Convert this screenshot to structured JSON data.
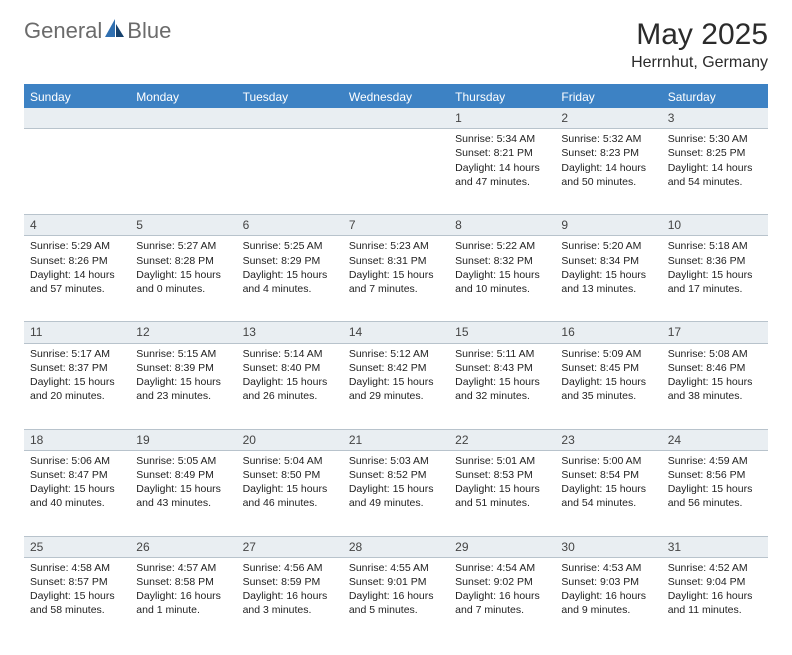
{
  "logo": {
    "text1": "General",
    "text2": "Blue"
  },
  "title": "May 2025",
  "location": "Herrnhut, Germany",
  "colors": {
    "header_bg": "#3d82c4",
    "header_text": "#ffffff",
    "band_bg": "#e9eef2",
    "band_border": "#b8c3cc",
    "logo_gray": "#6b6b6b",
    "logo_blue": "#2f6fb0"
  },
  "day_names": [
    "Sunday",
    "Monday",
    "Tuesday",
    "Wednesday",
    "Thursday",
    "Friday",
    "Saturday"
  ],
  "weeks": [
    [
      {
        "n": "",
        "lines": []
      },
      {
        "n": "",
        "lines": []
      },
      {
        "n": "",
        "lines": []
      },
      {
        "n": "",
        "lines": []
      },
      {
        "n": "1",
        "lines": [
          "Sunrise: 5:34 AM",
          "Sunset: 8:21 PM",
          "Daylight: 14 hours",
          "and 47 minutes."
        ]
      },
      {
        "n": "2",
        "lines": [
          "Sunrise: 5:32 AM",
          "Sunset: 8:23 PM",
          "Daylight: 14 hours",
          "and 50 minutes."
        ]
      },
      {
        "n": "3",
        "lines": [
          "Sunrise: 5:30 AM",
          "Sunset: 8:25 PM",
          "Daylight: 14 hours",
          "and 54 minutes."
        ]
      }
    ],
    [
      {
        "n": "4",
        "lines": [
          "Sunrise: 5:29 AM",
          "Sunset: 8:26 PM",
          "Daylight: 14 hours",
          "and 57 minutes."
        ]
      },
      {
        "n": "5",
        "lines": [
          "Sunrise: 5:27 AM",
          "Sunset: 8:28 PM",
          "Daylight: 15 hours",
          "and 0 minutes."
        ]
      },
      {
        "n": "6",
        "lines": [
          "Sunrise: 5:25 AM",
          "Sunset: 8:29 PM",
          "Daylight: 15 hours",
          "and 4 minutes."
        ]
      },
      {
        "n": "7",
        "lines": [
          "Sunrise: 5:23 AM",
          "Sunset: 8:31 PM",
          "Daylight: 15 hours",
          "and 7 minutes."
        ]
      },
      {
        "n": "8",
        "lines": [
          "Sunrise: 5:22 AM",
          "Sunset: 8:32 PM",
          "Daylight: 15 hours",
          "and 10 minutes."
        ]
      },
      {
        "n": "9",
        "lines": [
          "Sunrise: 5:20 AM",
          "Sunset: 8:34 PM",
          "Daylight: 15 hours",
          "and 13 minutes."
        ]
      },
      {
        "n": "10",
        "lines": [
          "Sunrise: 5:18 AM",
          "Sunset: 8:36 PM",
          "Daylight: 15 hours",
          "and 17 minutes."
        ]
      }
    ],
    [
      {
        "n": "11",
        "lines": [
          "Sunrise: 5:17 AM",
          "Sunset: 8:37 PM",
          "Daylight: 15 hours",
          "and 20 minutes."
        ]
      },
      {
        "n": "12",
        "lines": [
          "Sunrise: 5:15 AM",
          "Sunset: 8:39 PM",
          "Daylight: 15 hours",
          "and 23 minutes."
        ]
      },
      {
        "n": "13",
        "lines": [
          "Sunrise: 5:14 AM",
          "Sunset: 8:40 PM",
          "Daylight: 15 hours",
          "and 26 minutes."
        ]
      },
      {
        "n": "14",
        "lines": [
          "Sunrise: 5:12 AM",
          "Sunset: 8:42 PM",
          "Daylight: 15 hours",
          "and 29 minutes."
        ]
      },
      {
        "n": "15",
        "lines": [
          "Sunrise: 5:11 AM",
          "Sunset: 8:43 PM",
          "Daylight: 15 hours",
          "and 32 minutes."
        ]
      },
      {
        "n": "16",
        "lines": [
          "Sunrise: 5:09 AM",
          "Sunset: 8:45 PM",
          "Daylight: 15 hours",
          "and 35 minutes."
        ]
      },
      {
        "n": "17",
        "lines": [
          "Sunrise: 5:08 AM",
          "Sunset: 8:46 PM",
          "Daylight: 15 hours",
          "and 38 minutes."
        ]
      }
    ],
    [
      {
        "n": "18",
        "lines": [
          "Sunrise: 5:06 AM",
          "Sunset: 8:47 PM",
          "Daylight: 15 hours",
          "and 40 minutes."
        ]
      },
      {
        "n": "19",
        "lines": [
          "Sunrise: 5:05 AM",
          "Sunset: 8:49 PM",
          "Daylight: 15 hours",
          "and 43 minutes."
        ]
      },
      {
        "n": "20",
        "lines": [
          "Sunrise: 5:04 AM",
          "Sunset: 8:50 PM",
          "Daylight: 15 hours",
          "and 46 minutes."
        ]
      },
      {
        "n": "21",
        "lines": [
          "Sunrise: 5:03 AM",
          "Sunset: 8:52 PM",
          "Daylight: 15 hours",
          "and 49 minutes."
        ]
      },
      {
        "n": "22",
        "lines": [
          "Sunrise: 5:01 AM",
          "Sunset: 8:53 PM",
          "Daylight: 15 hours",
          "and 51 minutes."
        ]
      },
      {
        "n": "23",
        "lines": [
          "Sunrise: 5:00 AM",
          "Sunset: 8:54 PM",
          "Daylight: 15 hours",
          "and 54 minutes."
        ]
      },
      {
        "n": "24",
        "lines": [
          "Sunrise: 4:59 AM",
          "Sunset: 8:56 PM",
          "Daylight: 15 hours",
          "and 56 minutes."
        ]
      }
    ],
    [
      {
        "n": "25",
        "lines": [
          "Sunrise: 4:58 AM",
          "Sunset: 8:57 PM",
          "Daylight: 15 hours",
          "and 58 minutes."
        ]
      },
      {
        "n": "26",
        "lines": [
          "Sunrise: 4:57 AM",
          "Sunset: 8:58 PM",
          "Daylight: 16 hours",
          "and 1 minute."
        ]
      },
      {
        "n": "27",
        "lines": [
          "Sunrise: 4:56 AM",
          "Sunset: 8:59 PM",
          "Daylight: 16 hours",
          "and 3 minutes."
        ]
      },
      {
        "n": "28",
        "lines": [
          "Sunrise: 4:55 AM",
          "Sunset: 9:01 PM",
          "Daylight: 16 hours",
          "and 5 minutes."
        ]
      },
      {
        "n": "29",
        "lines": [
          "Sunrise: 4:54 AM",
          "Sunset: 9:02 PM",
          "Daylight: 16 hours",
          "and 7 minutes."
        ]
      },
      {
        "n": "30",
        "lines": [
          "Sunrise: 4:53 AM",
          "Sunset: 9:03 PM",
          "Daylight: 16 hours",
          "and 9 minutes."
        ]
      },
      {
        "n": "31",
        "lines": [
          "Sunrise: 4:52 AM",
          "Sunset: 9:04 PM",
          "Daylight: 16 hours",
          "and 11 minutes."
        ]
      }
    ]
  ]
}
